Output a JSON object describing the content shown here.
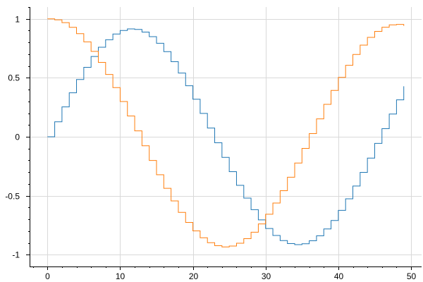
{
  "chart_data": {
    "type": "line",
    "step": "post",
    "grid": true,
    "xlim": [
      -2.45,
      51.45
    ],
    "ylim": [
      -1.1,
      1.1
    ],
    "xticks": [
      0,
      10,
      20,
      30,
      40,
      50
    ],
    "yticks": [
      -1,
      -0.5,
      0,
      0.5,
      1
    ],
    "x_tick_labels": [
      "0",
      "10",
      "20",
      "30",
      "40",
      "50"
    ],
    "y_tick_labels": [
      "-1",
      "-0.5",
      "0",
      "0.5",
      "1"
    ],
    "x": [
      0,
      1,
      2,
      3,
      4,
      5,
      6,
      7,
      8,
      9,
      10,
      11,
      12,
      13,
      14,
      15,
      16,
      17,
      18,
      19,
      20,
      21,
      22,
      23,
      24,
      25,
      26,
      27,
      28,
      29,
      30,
      31,
      32,
      33,
      34,
      35,
      36,
      37,
      38,
      39,
      40,
      41,
      42,
      43,
      44,
      45,
      46,
      47,
      48,
      49
    ],
    "series": [
      {
        "color": "#1f77b4",
        "values": [
          0.0,
          0.127,
          0.253,
          0.373,
          0.486,
          0.589,
          0.681,
          0.759,
          0.823,
          0.871,
          0.901,
          0.915,
          0.91,
          0.888,
          0.849,
          0.793,
          0.722,
          0.637,
          0.54,
          0.433,
          0.318,
          0.198,
          0.074,
          -0.051,
          -0.175,
          -0.296,
          -0.412,
          -0.52,
          -0.618,
          -0.705,
          -0.778,
          -0.837,
          -0.88,
          -0.906,
          -0.915,
          -0.907,
          -0.882,
          -0.84,
          -0.782,
          -0.71,
          -0.624,
          -0.526,
          -0.418,
          -0.302,
          -0.181,
          -0.056,
          0.069,
          0.193,
          0.313,
          0.428
        ]
      },
      {
        "color": "#ff7f0e",
        "values": [
          1.0,
          0.992,
          0.968,
          0.928,
          0.874,
          0.805,
          0.724,
          0.631,
          0.528,
          0.417,
          0.299,
          0.176,
          0.05,
          -0.076,
          -0.201,
          -0.322,
          -0.437,
          -0.544,
          -0.641,
          -0.726,
          -0.798,
          -0.856,
          -0.898,
          -0.924,
          -0.934,
          -0.927,
          -0.903,
          -0.864,
          -0.809,
          -0.739,
          -0.657,
          -0.562,
          -0.457,
          -0.343,
          -0.223,
          -0.099,
          0.027,
          0.152,
          0.275,
          0.393,
          0.504,
          0.606,
          0.698,
          0.777,
          0.843,
          0.894,
          0.929,
          0.949,
          0.953,
          0.94
        ]
      }
    ]
  }
}
